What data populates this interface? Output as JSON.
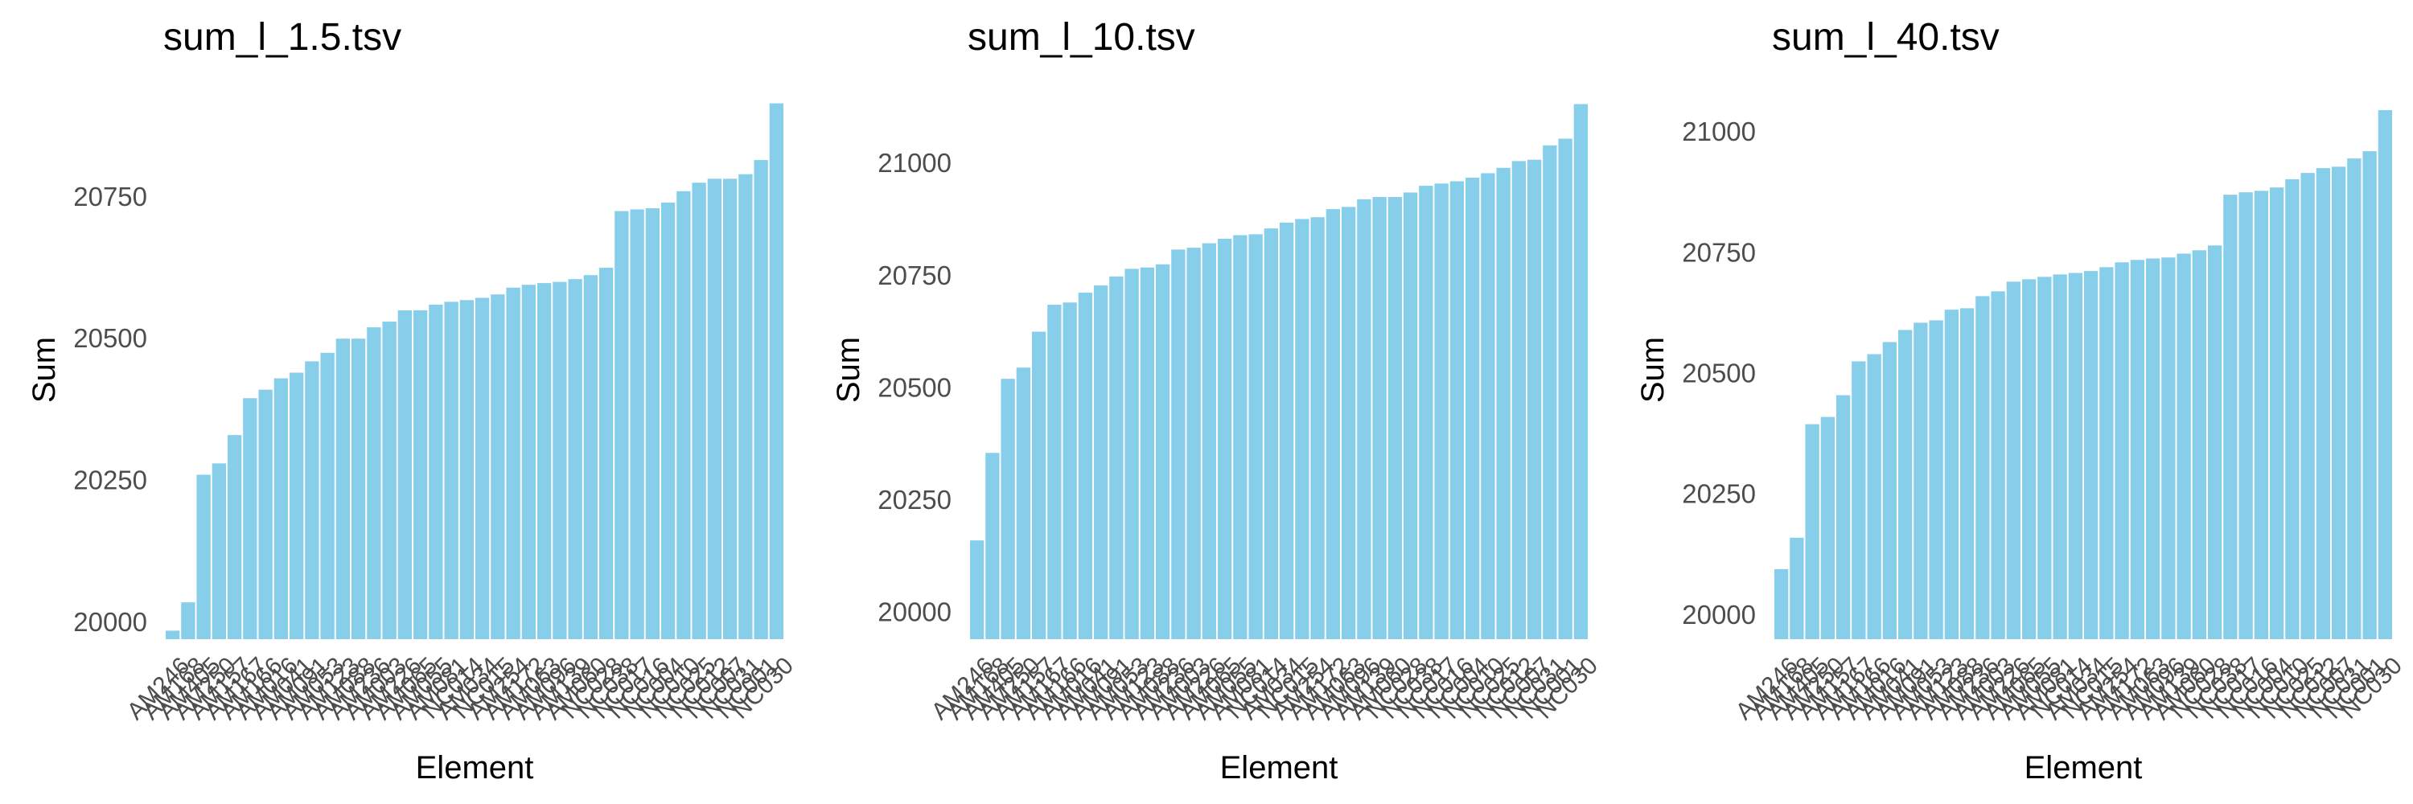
{
  "chart_data": [
    {
      "type": "bar",
      "title": "sum_l_1.5.tsv",
      "xlabel": "Element",
      "ylabel": "Sum",
      "ylim": [
        19970,
        20920
      ],
      "yticks": [
        20000,
        20250,
        20500,
        20750
      ],
      "bar_color": "#87CEEB",
      "grid": false,
      "categories": [
        "AM246",
        "AM168",
        "AM405",
        "AM250",
        "AM157",
        "AM167",
        "AM166",
        "AM016",
        "AM041",
        "AM091",
        "AM053",
        "AM123",
        "AM088",
        "AM236",
        "AM003",
        "AM226",
        "AM065",
        "AM055",
        "AM081",
        "NC014",
        "AM034",
        "NC015",
        "AM254",
        "AM172",
        "AM063",
        "AM096",
        "AM139",
        "AM060",
        "NC028",
        "NC038",
        "NC017",
        "NC016",
        "NC004",
        "NC010",
        "NC025",
        "NC012",
        "NC007",
        "NC031",
        "NC001",
        "NC030"
      ],
      "tick_labels": [
        "AM246",
        "AM168",
        "AM405",
        "AM250",
        "AM157",
        "AM167",
        "AM166",
        "AM016",
        "AM041",
        "AM091",
        "AM053",
        "AM123",
        "AM088",
        "AM236",
        "AM003",
        "AM226",
        "AM065",
        "AM055",
        "AM081",
        "NC014",
        "AM034",
        "NC015",
        "AM254",
        "AM172",
        "AM063",
        "AM096",
        "AM139",
        "AM060",
        "NC028",
        "NC038",
        "NC017",
        "NC016",
        "NC004",
        "NC010",
        "NC025",
        "NC012",
        "NC007",
        "NC031",
        "NC001",
        "NC030"
      ],
      "values": [
        19985,
        20035,
        20260,
        20280,
        20330,
        20395,
        20410,
        20430,
        20440,
        20460,
        20475,
        20500,
        20500,
        20520,
        20530,
        20550,
        20550,
        20560,
        20565,
        20568,
        20572,
        20578,
        20590,
        20595,
        20598,
        20600,
        20605,
        20612,
        20625,
        20725,
        20728,
        20730,
        20740,
        20760,
        20775,
        20782,
        20782,
        20790,
        20815,
        20915
      ]
    },
    {
      "type": "bar",
      "title": "sum_l_10.tsv",
      "xlabel": "Element",
      "ylabel": "Sum",
      "ylim": [
        19940,
        21140
      ],
      "yticks": [
        20000,
        20250,
        20500,
        20750,
        21000
      ],
      "bar_color": "#87CEEB",
      "grid": false,
      "categories": [
        "AM246",
        "AM168",
        "AM405",
        "AM250",
        "AM157",
        "AM167",
        "AM166",
        "AM016",
        "AM041",
        "AM091",
        "AM053",
        "AM123",
        "AM088",
        "AM236",
        "AM003",
        "AM226",
        "AM065",
        "AM055",
        "AM081",
        "NC014",
        "AM034",
        "NC015",
        "AM254",
        "AM172",
        "AM063",
        "AM096",
        "AM139",
        "AM060",
        "NC028",
        "NC038",
        "NC017",
        "NC016",
        "NC004",
        "NC010",
        "NC025",
        "NC012",
        "NC007",
        "NC031",
        "NC001",
        "NC030"
      ],
      "tick_labels": [
        "AM246",
        "AM168",
        "AM405",
        "AM250",
        "AM157",
        "AM167",
        "AM166",
        "AM016",
        "AM041",
        "AM091",
        "AM053",
        "AM123",
        "AM088",
        "AM236",
        "AM003",
        "AM226",
        "AM065",
        "AM055",
        "AM081",
        "NC014",
        "AM034",
        "NC015",
        "AM254",
        "AM172",
        "AM063",
        "AM096",
        "AM139",
        "AM060",
        "NC028",
        "NC038",
        "NC017",
        "NC016",
        "NC004",
        "NC010",
        "NC025",
        "NC012",
        "NC007",
        "NC031",
        "NC001",
        "NC030"
      ],
      "values": [
        20160,
        20355,
        20520,
        20545,
        20625,
        20685,
        20690,
        20712,
        20728,
        20748,
        20765,
        20768,
        20775,
        20808,
        20812,
        20822,
        20832,
        20840,
        20842,
        20855,
        20868,
        20876,
        20880,
        20898,
        20903,
        20920,
        20925,
        20925,
        20935,
        20950,
        20955,
        20960,
        20968,
        20978,
        20990,
        21005,
        21008,
        21040,
        21055,
        21132
      ]
    },
    {
      "type": "bar",
      "title": "sum_l_40.tsv",
      "xlabel": "Element",
      "ylabel": "Sum",
      "ylim": [
        19950,
        21065
      ],
      "yticks": [
        20000,
        20250,
        20500,
        20750,
        21000
      ],
      "bar_color": "#87CEEB",
      "grid": false,
      "categories": [
        "AM246",
        "AM168",
        "AM405",
        "AM250",
        "AM157",
        "AM167",
        "AM166",
        "AM016",
        "AM041",
        "AM091",
        "AM053",
        "AM123",
        "AM088",
        "AM236",
        "AM003",
        "AM226",
        "AM065",
        "AM055",
        "AM081",
        "NC014",
        "AM034",
        "NC015",
        "AM254",
        "AM172",
        "AM063",
        "AM096",
        "AM139",
        "AM060",
        "NC028",
        "NC038",
        "NC017",
        "NC016",
        "NC004",
        "NC010",
        "NC025",
        "NC012",
        "NC007",
        "NC031",
        "NC001",
        "NC030"
      ],
      "tick_labels": [
        "AM246",
        "AM168",
        "AM405",
        "AM250",
        "AM157",
        "AM167",
        "AM166",
        "AM016",
        "AM041",
        "AM091",
        "AM053",
        "AM123",
        "AM088",
        "AM236",
        "AM003",
        "AM226",
        "AM065",
        "AM055",
        "AM081",
        "NC014",
        "AM034",
        "NC015",
        "AM254",
        "AM172",
        "AM063",
        "AM096",
        "AM139",
        "AM060",
        "NC028",
        "NC038",
        "NC017",
        "NC016",
        "NC004",
        "NC010",
        "NC025",
        "NC012",
        "NC007",
        "NC031",
        "NC001",
        "NC030"
      ],
      "values": [
        20095,
        20160,
        20395,
        20410,
        20455,
        20525,
        20540,
        20565,
        20590,
        20605,
        20610,
        20632,
        20635,
        20660,
        20670,
        20690,
        20695,
        20700,
        20705,
        20708,
        20712,
        20720,
        20730,
        20735,
        20738,
        20740,
        20748,
        20755,
        20765,
        20870,
        20875,
        20878,
        20885,
        20902,
        20915,
        20925,
        20928,
        20945,
        20960,
        21045
      ]
    }
  ]
}
